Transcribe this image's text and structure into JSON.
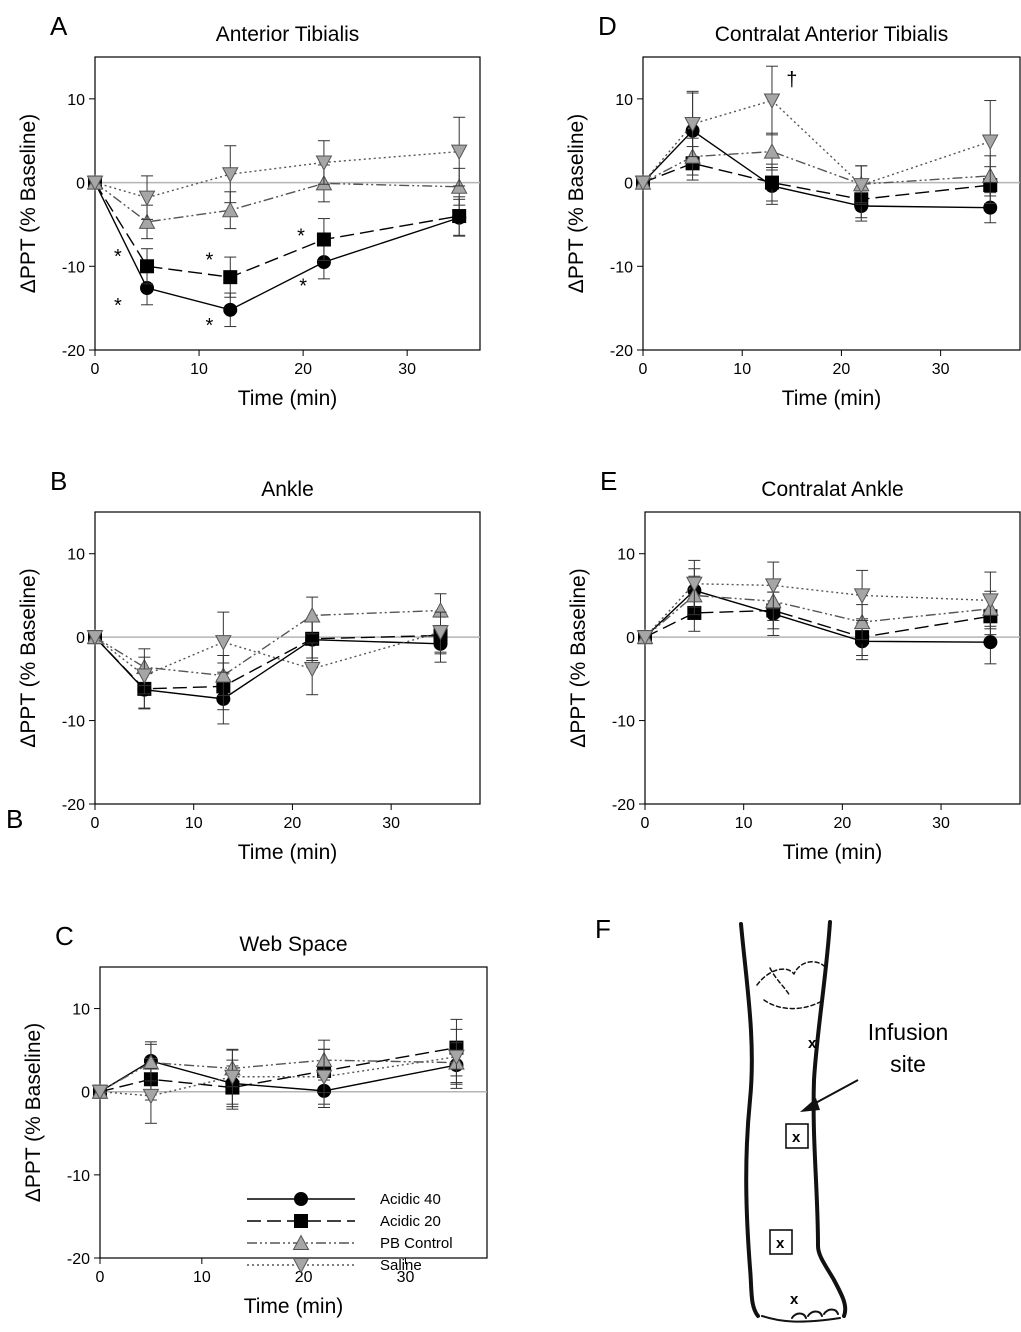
{
  "chart_data": [
    {
      "type": "line",
      "panel": "A",
      "title": "Anterior Tibialis",
      "xlabel": "Time (min)",
      "ylabel": "ΔPPT (% Baseline)",
      "xlim": [
        0,
        37
      ],
      "ylim": [
        -20,
        15
      ],
      "xticks": [
        "0",
        "10",
        "20",
        "30"
      ],
      "yticks": [
        "-20",
        "-10",
        "0",
        "10"
      ],
      "x": [
        0,
        5,
        13,
        22,
        35
      ],
      "series": [
        {
          "name": "Acidic 40",
          "values": [
            0,
            -12.6,
            -15.2,
            -9.5,
            -4.2
          ],
          "errors": [
            0,
            2,
            2,
            2,
            2.2
          ]
        },
        {
          "name": "Acidic 20",
          "values": [
            0,
            -10.0,
            -11.3,
            -6.8,
            -4.0
          ],
          "errors": [
            0,
            2.1,
            2.4,
            2.5,
            2.3
          ]
        },
        {
          "name": "PB Control",
          "values": [
            0,
            -4.7,
            -3.3,
            -0.1,
            -0.5
          ],
          "errors": [
            0,
            2,
            2.2,
            2.2,
            2.2
          ]
        },
        {
          "name": "Saline",
          "values": [
            0,
            -1.8,
            1.0,
            2.4,
            3.7
          ],
          "errors": [
            0,
            2.6,
            3.4,
            2.6,
            4.1
          ]
        }
      ],
      "annotations": [
        {
          "text": "*",
          "x": 2.2,
          "y": -8.8
        },
        {
          "text": "*",
          "x": 2.2,
          "y": -14.6
        },
        {
          "text": "*",
          "x": 11.0,
          "y": -9.2
        },
        {
          "text": "*",
          "x": 11.0,
          "y": -17.0
        },
        {
          "text": "*",
          "x": 19.8,
          "y": -6.3
        },
        {
          "text": "*",
          "x": 20.0,
          "y": -12.3
        }
      ],
      "zero_line": true
    },
    {
      "type": "line",
      "panel": "B",
      "title": "Ankle",
      "xlabel": "Time (min)",
      "ylabel": "ΔPPT (% Baseline)",
      "xlim": [
        0,
        39
      ],
      "ylim": [
        -20,
        15
      ],
      "xticks": [
        "0",
        "10",
        "20",
        "30"
      ],
      "yticks": [
        "-20",
        "-10",
        "0",
        "10"
      ],
      "x": [
        0,
        5,
        13,
        22,
        35
      ],
      "series": [
        {
          "name": "Acidic 40",
          "values": [
            0,
            -6.3,
            -7.4,
            -0.3,
            -0.8
          ],
          "errors": [
            0,
            2.2,
            3,
            2.5,
            2.2
          ]
        },
        {
          "name": "Acidic 20",
          "values": [
            0,
            -6.2,
            -5.9,
            -0.2,
            0.2
          ],
          "errors": [
            0,
            2.4,
            2.8,
            2.3,
            2.2
          ]
        },
        {
          "name": "PB Control",
          "values": [
            0,
            -3.6,
            -4.6,
            2.6,
            3.2
          ],
          "errors": [
            0,
            2.2,
            2.4,
            2.2,
            2
          ]
        },
        {
          "name": "Saline",
          "values": [
            0,
            -4.6,
            -0.6,
            -3.8,
            0.6
          ],
          "errors": [
            0,
            2.2,
            3.6,
            3.1,
            2.4
          ]
        }
      ],
      "zero_line": true
    },
    {
      "type": "line",
      "panel": "C",
      "title": "Web Space",
      "xlabel": "Time (min)",
      "ylabel": "ΔPPT (% Baseline)",
      "xlim": [
        0,
        38
      ],
      "ylim": [
        -20,
        15
      ],
      "xticks": [
        "0",
        "10",
        "20",
        "30"
      ],
      "yticks": [
        "-20",
        "-10",
        "0",
        "10"
      ],
      "x": [
        0,
        5,
        13,
        22,
        35
      ],
      "series": [
        {
          "name": "Acidic 40",
          "values": [
            0,
            3.7,
            1.0,
            0.1,
            3.2
          ],
          "errors": [
            0,
            2.3,
            2.8,
            2,
            2.8
          ]
        },
        {
          "name": "Acidic 20",
          "values": [
            0,
            1.5,
            0.5,
            2.5,
            5.3
          ],
          "errors": [
            0,
            2.5,
            2.6,
            2.6,
            3.4
          ]
        },
        {
          "name": "PB Control",
          "values": [
            0,
            3.5,
            2.8,
            3.8,
            3.5
          ],
          "errors": [
            0,
            2.2,
            2.2,
            2.4,
            2.4
          ]
        },
        {
          "name": "Saline",
          "values": [
            0,
            -0.5,
            1.8,
            1.8,
            4.2
          ],
          "errors": [
            0,
            3.3,
            3.3,
            3.3,
            3.3
          ]
        }
      ],
      "legend": {
        "placement": "bottom-right",
        "entries": [
          "Acidic 40",
          "Acidic 20",
          "PB Control",
          "Saline"
        ]
      },
      "zero_line": true
    },
    {
      "type": "line",
      "panel": "D",
      "title": "Contralat Anterior Tibialis",
      "xlabel": "Time (min)",
      "ylabel": "ΔPPT (% Baseline)",
      "xlim": [
        0,
        38
      ],
      "ylim": [
        -20,
        15
      ],
      "xticks": [
        "0",
        "10",
        "20",
        "30"
      ],
      "yticks": [
        "-20",
        "-10",
        "0",
        "10"
      ],
      "x": [
        0,
        5,
        13,
        22,
        35
      ],
      "series": [
        {
          "name": "Acidic 40",
          "values": [
            0,
            6.2,
            -0.4,
            -2.8,
            -3.0
          ],
          "errors": [
            0,
            4.5,
            2.2,
            1.8,
            1.8
          ]
        },
        {
          "name": "Acidic 20",
          "values": [
            0,
            2.3,
            0.0,
            -2.0,
            -0.3
          ],
          "errors": [
            0,
            2,
            2.2,
            2.2,
            2.2
          ]
        },
        {
          "name": "PB Control",
          "values": [
            0,
            3.1,
            3.7,
            -0.2,
            0.8
          ],
          "errors": [
            0,
            2.2,
            2.2,
            2.2,
            2.4
          ]
        },
        {
          "name": "Saline",
          "values": [
            0,
            7.0,
            9.8,
            -0.3,
            4.9
          ],
          "errors": [
            0,
            3.9,
            4.1,
            2.3,
            4.9
          ]
        }
      ],
      "annotations": [
        {
          "text": "†",
          "x": 15.0,
          "y": 12.4
        }
      ],
      "zero_line": true
    },
    {
      "type": "line",
      "panel": "E",
      "title": "Contralat Ankle",
      "xlabel": "Time (min)",
      "ylabel": "ΔPPT (% Baseline)",
      "xlim": [
        0,
        38
      ],
      "ylim": [
        -20,
        15
      ],
      "xticks": [
        "0",
        "10",
        "20",
        "30"
      ],
      "yticks": [
        "-20",
        "-10",
        "0",
        "10"
      ],
      "x": [
        0,
        5,
        13,
        22,
        35
      ],
      "series": [
        {
          "name": "Acidic 40",
          "values": [
            0,
            5.6,
            2.8,
            -0.5,
            -0.6
          ],
          "errors": [
            0,
            2.6,
            2.6,
            2.2,
            2.6
          ]
        },
        {
          "name": "Acidic 20",
          "values": [
            0,
            2.9,
            3.2,
            0.0,
            2.5
          ],
          "errors": [
            0,
            2.2,
            2.2,
            2.2,
            2.2
          ]
        },
        {
          "name": "PB Control",
          "values": [
            0,
            5.0,
            4.3,
            1.8,
            3.4
          ],
          "errors": [
            0,
            2.3,
            2.3,
            2.1,
            2.1
          ]
        },
        {
          "name": "Saline",
          "values": [
            0,
            6.4,
            6.2,
            5.0,
            4.4
          ],
          "errors": [
            0,
            2.8,
            2.8,
            3,
            3.4
          ]
        }
      ],
      "zero_line": true
    }
  ],
  "figure": {
    "stray_label": "B"
  },
  "panel_f": {
    "letter": "F",
    "label_line1": "Infusion",
    "label_line2": "site",
    "markers": [
      "x",
      "x",
      "x",
      "x"
    ]
  }
}
